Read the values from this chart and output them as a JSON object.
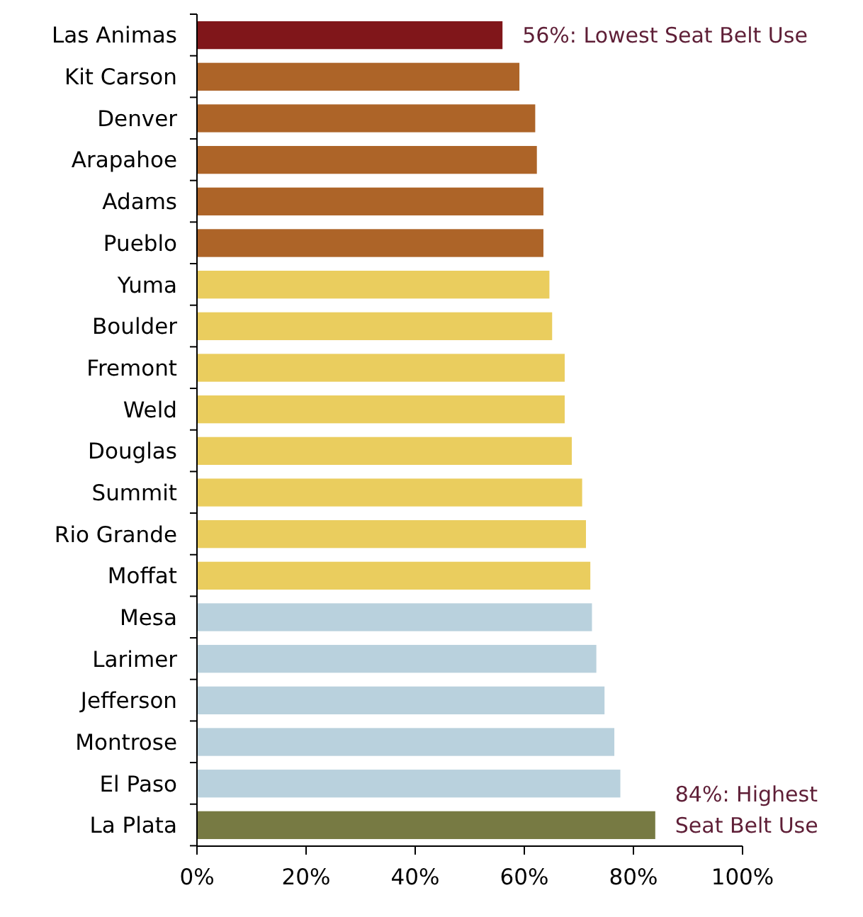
{
  "chart_data": {
    "type": "bar",
    "orientation": "horizontal",
    "categories": [
      "Las Animas",
      "Kit Carson",
      "Denver",
      "Arapahoe",
      "Adams",
      "Pueblo",
      "Yuma",
      "Boulder",
      "Fremont",
      "Weld",
      "Douglas",
      "Summit",
      "Rio Grande",
      "Moffat",
      "Mesa",
      "Larimer",
      "Jefferson",
      "Montrose",
      "El Paso",
      "La Plata"
    ],
    "values": [
      56,
      59.1,
      62,
      62.3,
      63.5,
      63.5,
      64.6,
      65.1,
      67.4,
      67.4,
      68.7,
      70.6,
      71.3,
      72.1,
      72.4,
      73.2,
      74.7,
      76.5,
      77.6,
      84
    ],
    "colors": [
      "#80161a",
      "#ad6428",
      "#ad6428",
      "#ad6428",
      "#ad6428",
      "#ad6428",
      "#eacd5e",
      "#eacd5e",
      "#eacd5e",
      "#eacd5e",
      "#eacd5e",
      "#eacd5e",
      "#eacd5e",
      "#eacd5e",
      "#b9d1dd",
      "#b9d1dd",
      "#b9d1dd",
      "#b9d1dd",
      "#b9d1dd",
      "#777a43"
    ],
    "xlim": [
      0,
      100
    ],
    "xticks": [
      {
        "value": 0,
        "label": "0%"
      },
      {
        "value": 20,
        "label": "20%"
      },
      {
        "value": 40,
        "label": "40%"
      },
      {
        "value": 60,
        "label": "60%"
      },
      {
        "value": 80,
        "label": "80%"
      },
      {
        "value": 100,
        "label": "100%"
      }
    ],
    "annotations": [
      {
        "text": "56%: Lowest Seat Belt Use",
        "x": 56,
        "y": "Las Animas"
      },
      {
        "text": "84%: Highest Seat Belt Use",
        "x": 84,
        "y": "La Plata"
      }
    ],
    "grid": false
  }
}
